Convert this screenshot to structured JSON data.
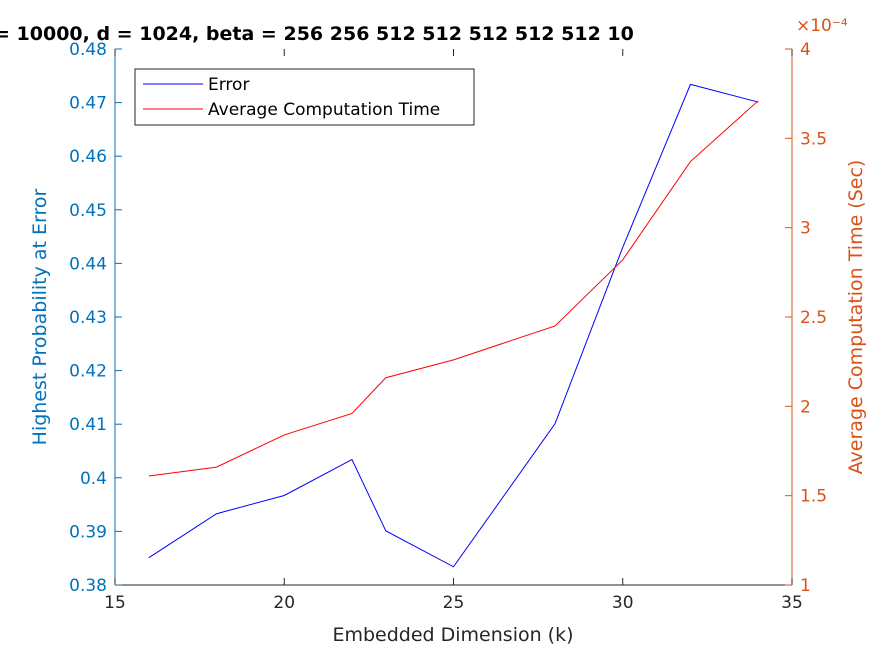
{
  "chart_data": {
    "type": "line",
    "title": "= 10000, d = 1024, beta = 256   256   512   512   512   512   512   10",
    "xlabel": "Embedded Dimension (k)",
    "ylabel_left": "Highest Probability at Error",
    "ylabel_right": "Average Computation Time (Sec)",
    "right_exponent": "×10⁻⁴",
    "xlim": [
      15,
      35
    ],
    "ylim_left": [
      0.38,
      0.48
    ],
    "ylim_right": [
      1,
      4
    ],
    "x_ticks": [
      "15",
      "20",
      "25",
      "30",
      "35"
    ],
    "y_ticks_left": [
      "0.38",
      "0.39",
      "0.4",
      "0.41",
      "0.42",
      "0.43",
      "0.44",
      "0.45",
      "0.46",
      "0.47",
      "0.48"
    ],
    "y_ticks_right": [
      "1",
      "1.5",
      "2",
      "2.5",
      "3",
      "3.5",
      "4"
    ],
    "legend_position": "top-left",
    "grid": false,
    "series": [
      {
        "name": "Error",
        "axis": "left",
        "color": "#0000FF",
        "x": [
          16,
          18,
          20,
          22,
          23,
          25,
          28,
          30,
          32,
          34
        ],
        "y": [
          0.3851,
          0.3933,
          0.3967,
          0.4034,
          0.3901,
          0.3834,
          0.4101,
          0.443,
          0.4734,
          0.4701
        ]
      },
      {
        "name": "Average Computation Time",
        "axis": "right",
        "color": "#FF0000",
        "x": [
          16,
          18,
          20,
          22,
          23,
          25,
          28,
          30,
          32,
          34
        ],
        "y": [
          1.61,
          1.66,
          1.84,
          1.96,
          2.16,
          2.26,
          2.45,
          2.82,
          3.37,
          3.71
        ]
      }
    ]
  },
  "colors": {
    "left_axis": "#0072BD",
    "right_axis": "#D95319",
    "bottom_axis": "#262626"
  }
}
